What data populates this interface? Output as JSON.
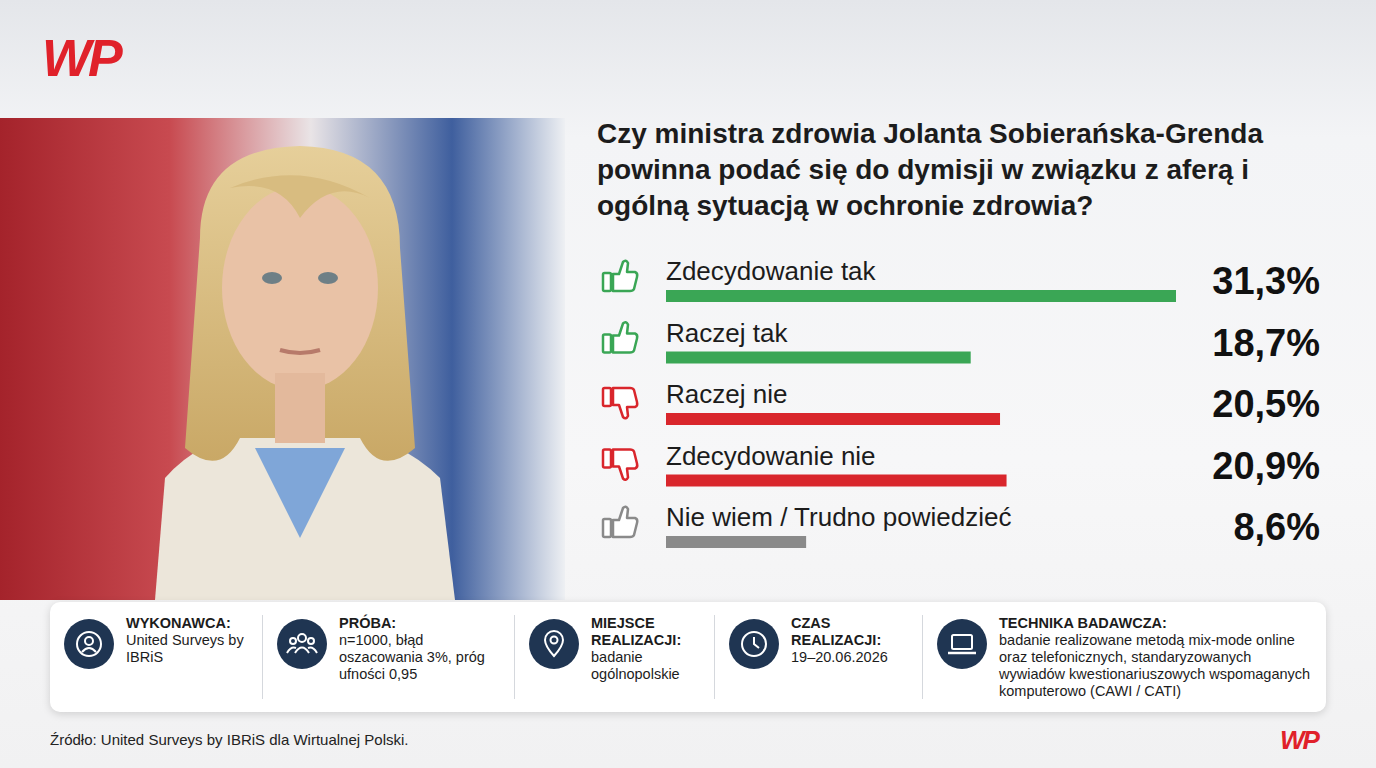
{
  "logo": "WP",
  "chart_data": {
    "type": "bar",
    "orientation": "horizontal",
    "title": "Czy ministra zdrowia Jolanta Sobierańska-Grenda powinna podać się do dymisji w związku z aferą i ogólną sytuacją w ochronie zdrowia?",
    "categories": [
      "Zdecydowanie tak",
      "Raczej tak",
      "Raczej nie",
      "Zdecydowanie nie",
      "Nie wiem / Trudno powiedzieć"
    ],
    "values": [
      31.3,
      18.7,
      20.5,
      20.9,
      8.6
    ],
    "value_labels": [
      "31,3%",
      "18,7%",
      "20,5%",
      "20,9%",
      "8,6%"
    ],
    "colors": [
      "#3aa655",
      "#3aa655",
      "#d9262c",
      "#d9262c",
      "#8a8a8a"
    ],
    "xlim": [
      0,
      31.3
    ],
    "data_labels": true,
    "tick_labels": false
  },
  "footer": {
    "items": [
      {
        "label": "WYKONAWCA:",
        "value": "United Surveys by IBRiS"
      },
      {
        "label": "PRÓBA:",
        "value": "n=1000, błąd oszacowania 3%, próg ufności 0,95"
      },
      {
        "label": "MIEJSCE REALIZACJI:",
        "value": "badanie ogólnopolskie"
      },
      {
        "label": "CZAS REALIZACJI:",
        "value": "19–20.06.2026"
      },
      {
        "label": "TECHNIKA BADAWCZA:",
        "value": "badanie realizowane metodą mix-mode online oraz telefonicznych, standaryzowanych wywiadów kwestionariuszowych wspomaganych komputerowo (CAWI / CATI)"
      }
    ],
    "source": "Źródło: United Surveys by IBRiS dla Wirtualnej Polski."
  }
}
